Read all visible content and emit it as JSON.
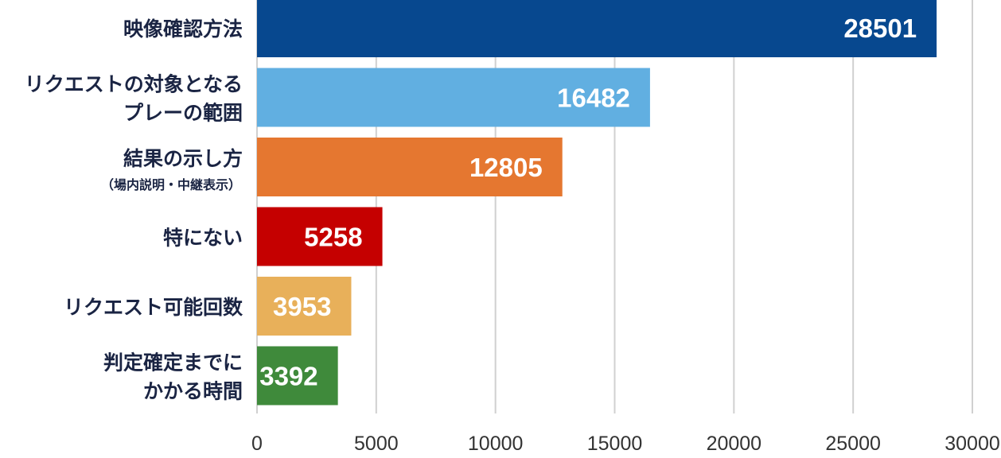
{
  "chart_data": {
    "type": "bar",
    "orientation": "horizontal",
    "categories": [
      {
        "lines": [
          "映像確認方法"
        ],
        "sub": ""
      },
      {
        "lines": [
          "リクエストの対象となる",
          "プレーの範囲"
        ],
        "sub": ""
      },
      {
        "lines": [
          "結果の示し方"
        ],
        "sub": "（場内説明・中継表示）"
      },
      {
        "lines": [
          "特にない"
        ],
        "sub": ""
      },
      {
        "lines": [
          "リクエスト可能回数"
        ],
        "sub": ""
      },
      {
        "lines": [
          "判定確定までに",
          "かかる時間"
        ],
        "sub": ""
      }
    ],
    "values": [
      28501,
      16482,
      12805,
      5258,
      3953,
      3392
    ],
    "colors": [
      "#07488f",
      "#61afe1",
      "#e57730",
      "#c50000",
      "#e8b05a",
      "#3f8a3b"
    ],
    "xlim": [
      0,
      30000
    ],
    "xticks": [
      0,
      5000,
      10000,
      15000,
      20000,
      25000,
      30000
    ],
    "grid": true,
    "title": "",
    "xlabel": "",
    "ylabel": ""
  }
}
